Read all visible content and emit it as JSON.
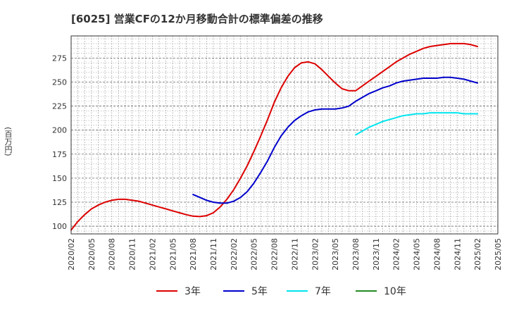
{
  "chart_data": {
    "type": "line",
    "title": "[6025]  営業CFの12か月移動合計の標準偏差の推移",
    "ylabel": "(百万円)",
    "xlabel": "",
    "ylim": [
      92,
      298
    ],
    "yticks": [
      100,
      125,
      150,
      175,
      200,
      225,
      250,
      275
    ],
    "xticks": [
      "2020/02",
      "2020/05",
      "2020/08",
      "2020/11",
      "2021/02",
      "2021/05",
      "2021/08",
      "2021/11",
      "2022/02",
      "2022/05",
      "2022/08",
      "2022/11",
      "2023/02",
      "2023/05",
      "2023/08",
      "2023/11",
      "2024/02",
      "2024/05",
      "2024/08",
      "2024/11",
      "2025/02",
      "2025/05"
    ],
    "grid": true,
    "legend_position": "bottom",
    "series": [
      {
        "name": "3年",
        "color": "#dd0000",
        "points": [
          [
            "2020/02",
            96
          ],
          [
            "2020/03",
            105
          ],
          [
            "2020/04",
            112
          ],
          [
            "2020/05",
            118
          ],
          [
            "2020/06",
            122
          ],
          [
            "2020/07",
            125
          ],
          [
            "2020/08",
            127
          ],
          [
            "2020/09",
            128
          ],
          [
            "2020/10",
            128
          ],
          [
            "2020/11",
            127
          ],
          [
            "2020/12",
            126
          ],
          [
            "2021/01",
            124
          ],
          [
            "2021/02",
            122
          ],
          [
            "2021/03",
            120
          ],
          [
            "2021/04",
            118
          ],
          [
            "2021/05",
            116
          ],
          [
            "2021/06",
            114
          ],
          [
            "2021/07",
            112
          ],
          [
            "2021/08",
            110.5
          ],
          [
            "2021/09",
            110
          ],
          [
            "2021/10",
            111
          ],
          [
            "2021/11",
            114
          ],
          [
            "2021/12",
            120
          ],
          [
            "2022/01",
            128
          ],
          [
            "2022/02",
            138
          ],
          [
            "2022/03",
            150
          ],
          [
            "2022/04",
            163
          ],
          [
            "2022/05",
            178
          ],
          [
            "2022/06",
            194
          ],
          [
            "2022/07",
            211
          ],
          [
            "2022/08",
            229
          ],
          [
            "2022/09",
            244
          ],
          [
            "2022/10",
            256
          ],
          [
            "2022/11",
            265
          ],
          [
            "2022/12",
            270
          ],
          [
            "2023/01",
            271
          ],
          [
            "2023/02",
            269
          ],
          [
            "2023/03",
            263
          ],
          [
            "2023/04",
            256
          ],
          [
            "2023/05",
            249
          ],
          [
            "2023/06",
            243
          ],
          [
            "2023/07",
            241
          ],
          [
            "2023/08",
            241
          ],
          [
            "2023/09",
            246
          ],
          [
            "2023/10",
            251
          ],
          [
            "2023/11",
            256
          ],
          [
            "2023/12",
            261
          ],
          [
            "2024/01",
            266
          ],
          [
            "2024/02",
            271
          ],
          [
            "2024/03",
            275
          ],
          [
            "2024/04",
            279
          ],
          [
            "2024/05",
            282
          ],
          [
            "2024/06",
            285
          ],
          [
            "2024/07",
            287
          ],
          [
            "2024/08",
            288
          ],
          [
            "2024/09",
            289
          ],
          [
            "2024/10",
            290
          ],
          [
            "2024/11",
            290
          ],
          [
            "2024/12",
            290
          ],
          [
            "2025/01",
            289
          ],
          [
            "2025/02",
            287
          ]
        ]
      },
      {
        "name": "5年",
        "color": "#0000cc",
        "points": [
          [
            "2021/08",
            133
          ],
          [
            "2021/09",
            130
          ],
          [
            "2021/10",
            127
          ],
          [
            "2021/11",
            125
          ],
          [
            "2021/12",
            124
          ],
          [
            "2022/01",
            124
          ],
          [
            "2022/02",
            126
          ],
          [
            "2022/03",
            130
          ],
          [
            "2022/04",
            136
          ],
          [
            "2022/05",
            145
          ],
          [
            "2022/06",
            156
          ],
          [
            "2022/07",
            168
          ],
          [
            "2022/08",
            182
          ],
          [
            "2022/09",
            194
          ],
          [
            "2022/10",
            203
          ],
          [
            "2022/11",
            210
          ],
          [
            "2022/12",
            215
          ],
          [
            "2023/01",
            219
          ],
          [
            "2023/02",
            221
          ],
          [
            "2023/03",
            222
          ],
          [
            "2023/04",
            222
          ],
          [
            "2023/05",
            222
          ],
          [
            "2023/06",
            223
          ],
          [
            "2023/07",
            225
          ],
          [
            "2023/08",
            230
          ],
          [
            "2023/09",
            234
          ],
          [
            "2023/10",
            238
          ],
          [
            "2023/11",
            241
          ],
          [
            "2023/12",
            244
          ],
          [
            "2024/01",
            246
          ],
          [
            "2024/02",
            249
          ],
          [
            "2024/03",
            251
          ],
          [
            "2024/04",
            252
          ],
          [
            "2024/05",
            253
          ],
          [
            "2024/06",
            254
          ],
          [
            "2024/07",
            254
          ],
          [
            "2024/08",
            254
          ],
          [
            "2024/09",
            255
          ],
          [
            "2024/10",
            255
          ],
          [
            "2024/11",
            254
          ],
          [
            "2024/12",
            253
          ],
          [
            "2025/01",
            251
          ],
          [
            "2025/02",
            249
          ]
        ]
      },
      {
        "name": "7年",
        "color": "#00e5ee",
        "points": [
          [
            "2023/08",
            195
          ],
          [
            "2023/09",
            199
          ],
          [
            "2023/10",
            203
          ],
          [
            "2023/11",
            206
          ],
          [
            "2023/12",
            209
          ],
          [
            "2024/01",
            211
          ],
          [
            "2024/02",
            213
          ],
          [
            "2024/03",
            215
          ],
          [
            "2024/04",
            216
          ],
          [
            "2024/05",
            217
          ],
          [
            "2024/06",
            217
          ],
          [
            "2024/07",
            218
          ],
          [
            "2024/08",
            218
          ],
          [
            "2024/09",
            218
          ],
          [
            "2024/10",
            218
          ],
          [
            "2024/11",
            218
          ],
          [
            "2024/12",
            217
          ],
          [
            "2025/01",
            217
          ],
          [
            "2025/02",
            217
          ]
        ]
      },
      {
        "name": "10年",
        "color": "#228b22",
        "points": []
      }
    ]
  }
}
